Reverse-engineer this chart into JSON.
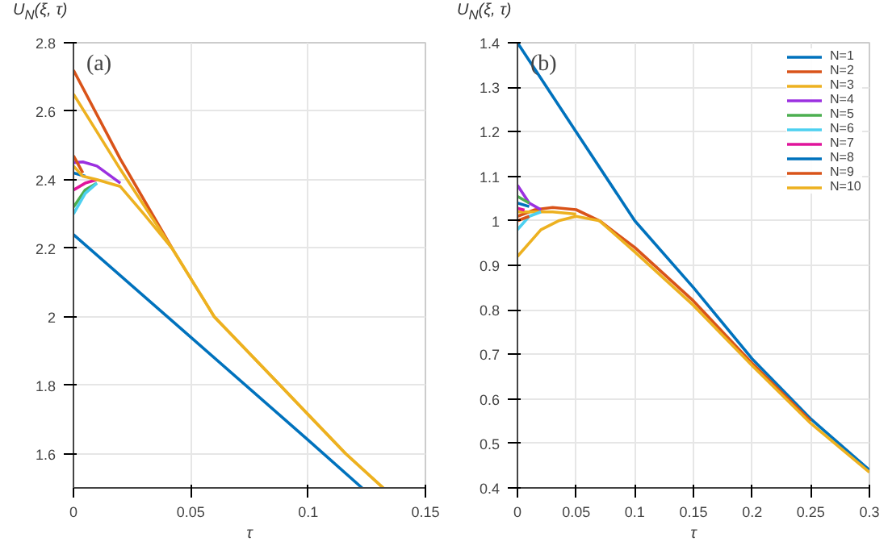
{
  "chart_data": [
    {
      "type": "line",
      "title": "(a)",
      "ylabel": "U$_{N}$(ξ, τ)",
      "xlabel": "τ",
      "xlim": [
        0,
        0.15
      ],
      "ylim": [
        1.5,
        2.8
      ],
      "xticks": [
        0,
        0.05,
        0.1,
        0.15
      ],
      "yticks": [
        1.6,
        1.8,
        2,
        2.2,
        2.4,
        2.6,
        2.8
      ],
      "grid": true,
      "legend": false,
      "series": [
        {
          "color": "#0072bd",
          "x": [
            0,
            0.05,
            0.1,
            0.123
          ],
          "values": [
            2.24,
            1.94,
            1.64,
            1.5
          ]
        },
        {
          "color": "#d95319",
          "x": [
            0,
            0.02,
            0.042
          ],
          "values": [
            2.72,
            2.46,
            2.2
          ]
        },
        {
          "color": "#edb120",
          "x": [
            0,
            0.02,
            0.042,
            0.06,
            0.088,
            0.116,
            0.132
          ],
          "values": [
            2.65,
            2.43,
            2.2,
            2.0,
            1.8,
            1.6,
            1.5
          ]
        },
        {
          "color": "#9b30e0",
          "x": [
            0,
            0.004,
            0.01,
            0.02
          ],
          "values": [
            2.45,
            2.452,
            2.44,
            2.39
          ]
        },
        {
          "color": "#4caf50",
          "x": [
            0,
            0.005,
            0.01
          ],
          "values": [
            2.32,
            2.37,
            2.39
          ]
        },
        {
          "color": "#4dd0f0",
          "x": [
            0,
            0.005,
            0.01
          ],
          "values": [
            2.3,
            2.36,
            2.39
          ]
        },
        {
          "color": "#e0149b",
          "x": [
            0,
            0.005,
            0.01
          ],
          "values": [
            2.37,
            2.39,
            2.4
          ]
        },
        {
          "color": "#0072bd",
          "x": [
            0,
            0.005
          ],
          "values": [
            2.42,
            2.41
          ]
        },
        {
          "color": "#d95319",
          "x": [
            0,
            0.004
          ],
          "values": [
            2.47,
            2.42
          ]
        },
        {
          "color": "#edb120",
          "x": [
            0,
            0.004,
            0.01,
            0.02,
            0.03,
            0.042,
            0.06,
            0.088,
            0.116,
            0.132
          ],
          "values": [
            2.44,
            2.41,
            2.4,
            2.38,
            2.3,
            2.2,
            2.0,
            1.8,
            1.6,
            1.5
          ]
        }
      ]
    },
    {
      "type": "line",
      "title": "(b)",
      "ylabel": "U$_{N}$(ξ, τ)",
      "xlabel": "τ",
      "xlim": [
        0,
        0.3
      ],
      "ylim": [
        0.4,
        1.4
      ],
      "xticks": [
        0,
        0.05,
        0.1,
        0.15,
        0.2,
        0.25,
        0.3
      ],
      "yticks": [
        0.4,
        0.5,
        0.6,
        0.7,
        0.8,
        0.9,
        1,
        1.1,
        1.2,
        1.3,
        1.4
      ],
      "grid": true,
      "legend": "top right",
      "series": [
        {
          "name": "N=1",
          "color": "#0072bd",
          "x": [
            0,
            0.05,
            0.1,
            0.15,
            0.2,
            0.25,
            0.3
          ],
          "values": [
            1.4,
            1.2,
            1.0,
            0.85,
            0.69,
            0.555,
            0.44
          ]
        },
        {
          "name": "N=2",
          "color": "#d95319",
          "x": [
            0,
            0.015,
            0.03,
            0.05,
            0.07,
            0.1,
            0.15,
            0.2,
            0.25
          ],
          "values": [
            1.01,
            1.025,
            1.03,
            1.025,
            1.0,
            0.94,
            0.82,
            0.68,
            0.55
          ]
        },
        {
          "name": "N=3",
          "color": "#edb120",
          "x": [
            0,
            0.015,
            0.03,
            0.05
          ],
          "values": [
            1.02,
            1.02,
            1.02,
            1.015
          ]
        },
        {
          "name": "N=4",
          "color": "#9b30e0",
          "x": [
            0,
            0.01,
            0.02
          ],
          "values": [
            1.08,
            1.04,
            1.025
          ]
        },
        {
          "name": "N=5",
          "color": "#4caf50",
          "x": [
            0,
            0.01
          ],
          "values": [
            1.055,
            1.04
          ]
        },
        {
          "name": "N=6",
          "color": "#4dd0f0",
          "x": [
            0,
            0.01,
            0.02
          ],
          "values": [
            0.98,
            1.01,
            1.02
          ]
        },
        {
          "name": "N=7",
          "color": "#e0149b",
          "x": [
            0,
            0.006
          ],
          "values": [
            1.028,
            1.024
          ]
        },
        {
          "name": "N=8",
          "color": "#0072bd",
          "x": [
            0,
            0.01
          ],
          "values": [
            1.04,
            1.032
          ]
        },
        {
          "name": "N=9",
          "color": "#d95319",
          "x": [
            0,
            0.01
          ],
          "values": [
            1.0,
            1.01
          ]
        },
        {
          "name": "N=10",
          "color": "#edb120",
          "x": [
            0,
            0.02,
            0.035,
            0.05,
            0.07,
            0.1,
            0.15,
            0.2,
            0.25,
            0.3
          ],
          "values": [
            0.92,
            0.98,
            1.0,
            1.01,
            1.0,
            0.93,
            0.81,
            0.675,
            0.545,
            0.435
          ]
        }
      ]
    }
  ]
}
